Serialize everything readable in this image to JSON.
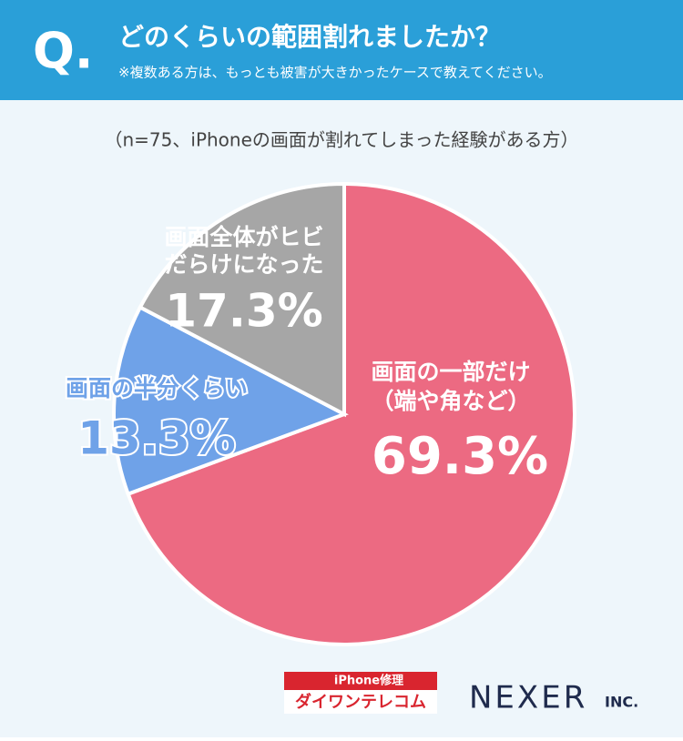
{
  "header": {
    "mark": "Q.",
    "title": "どのくらいの範囲割れましたか？",
    "subtitle": "※複数ある方は、もっとも被害が大きかったケースで教えてください。"
  },
  "chart_data": {
    "type": "pie",
    "note": "（n=75、iPhoneの画面が割れてしまった経験がある方）",
    "categories": [
      [
        "画面の一部だけ",
        "（端や角など）"
      ],
      [
        "画面の半分くらい"
      ],
      [
        "画面全体がヒビ",
        "だらけになった"
      ]
    ],
    "values": [
      69.3,
      13.3,
      17.3
    ],
    "value_labels": [
      "69.3%",
      "13.3%",
      "17.3%"
    ],
    "colors": [
      "#ec6a82",
      "#6fa2e8",
      "#a6a6a6"
    ]
  },
  "footer": {
    "sponsor_top": "iPhone修理",
    "sponsor_name": "ダイワンテレコム",
    "company": "NEXER",
    "company_suffix": "INC."
  }
}
